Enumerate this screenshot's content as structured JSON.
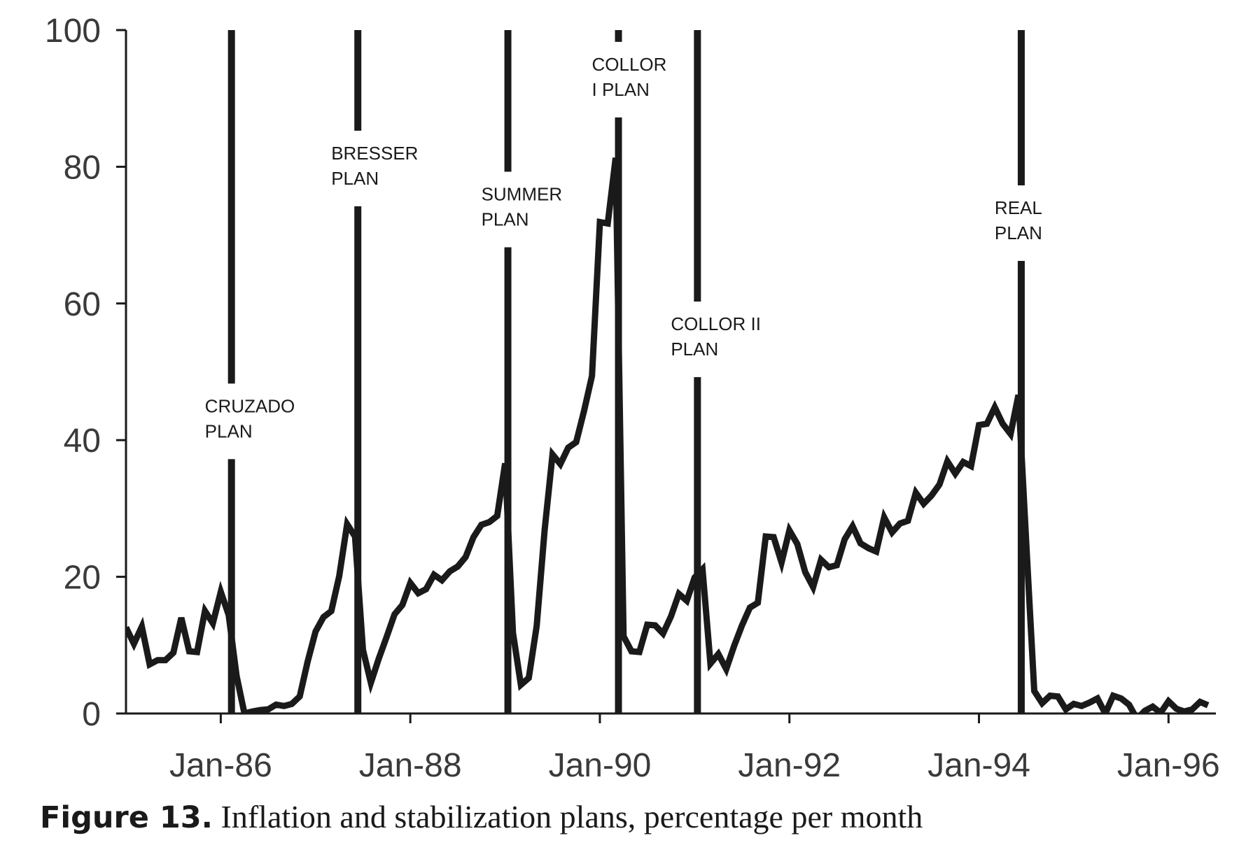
{
  "caption": {
    "label": "Figure 13.",
    "text": "Inflation and stabilization plans, percentage per month"
  },
  "chart_data": {
    "type": "line",
    "title": "",
    "xlabel": "",
    "ylabel": "",
    "ylim": [
      0,
      100
    ],
    "yticks": [
      0,
      20,
      40,
      60,
      80,
      100
    ],
    "xticks": [
      {
        "label": "Jan-86",
        "x": "1986-01"
      },
      {
        "label": "Jan-88",
        "x": "1988-01"
      },
      {
        "label": "Jan-90",
        "x": "1990-01"
      },
      {
        "label": "Jan-92",
        "x": "1992-01"
      },
      {
        "label": "Jan-94",
        "x": "1994-01"
      },
      {
        "label": "Jan-96",
        "x": "1996-01"
      }
    ],
    "xlim": [
      "1985-01",
      "1996-07"
    ],
    "grid": false,
    "line_color": "#1a1a1a",
    "series": [
      {
        "x": [
          "1985-01",
          "1985-02",
          "1985-03",
          "1985-04",
          "1985-05",
          "1985-06",
          "1985-07",
          "1985-08",
          "1985-09",
          "1985-10",
          "1985-11",
          "1985-12",
          "1986-01",
          "1986-02",
          "1986-03",
          "1986-04",
          "1986-05",
          "1986-06",
          "1986-07",
          "1986-08",
          "1986-09",
          "1986-10",
          "1986-11",
          "1986-12",
          "1987-01",
          "1987-02",
          "1987-03",
          "1987-04",
          "1987-05",
          "1987-06",
          "1987-07",
          "1987-08",
          "1987-09",
          "1987-10",
          "1987-11",
          "1987-12",
          "1988-01",
          "1988-02",
          "1988-03",
          "1988-04",
          "1988-05",
          "1988-06",
          "1988-07",
          "1988-08",
          "1988-09",
          "1988-10",
          "1988-11",
          "1988-12",
          "1989-01",
          "1989-02",
          "1989-03",
          "1989-04",
          "1989-05",
          "1989-06",
          "1989-07",
          "1989-08",
          "1989-09",
          "1989-10",
          "1989-11",
          "1989-12",
          "1990-01",
          "1990-02",
          "1990-03",
          "1990-04",
          "1990-05",
          "1990-06",
          "1990-07",
          "1990-08",
          "1990-09",
          "1990-10",
          "1990-11",
          "1990-12",
          "1991-01",
          "1991-02",
          "1991-03",
          "1991-04",
          "1991-05",
          "1991-06",
          "1991-07",
          "1991-08",
          "1991-09",
          "1991-10",
          "1991-11",
          "1991-12",
          "1992-01",
          "1992-02",
          "1992-03",
          "1992-04",
          "1992-05",
          "1992-06",
          "1992-07",
          "1992-08",
          "1992-09",
          "1992-10",
          "1992-11",
          "1992-12",
          "1993-01",
          "1993-02",
          "1993-03",
          "1993-04",
          "1993-05",
          "1993-06",
          "1993-07",
          "1993-08",
          "1993-09",
          "1993-10",
          "1993-11",
          "1993-12",
          "1994-01",
          "1994-02",
          "1994-03",
          "1994-04",
          "1994-05",
          "1994-06",
          "1994-07",
          "1994-08",
          "1994-09",
          "1994-10",
          "1994-11",
          "1994-12",
          "1995-01",
          "1995-02",
          "1995-03",
          "1995-04",
          "1995-05",
          "1995-06",
          "1995-07",
          "1995-08",
          "1995-09",
          "1995-10",
          "1995-11",
          "1995-12",
          "1996-01",
          "1996-02",
          "1996-03",
          "1996-04",
          "1996-05",
          "1996-06"
        ],
        "values": [
          12.6,
          10.2,
          12.7,
          7.2,
          7.8,
          7.8,
          8.9,
          14.0,
          9.1,
          9.0,
          15.0,
          13.2,
          17.8,
          14.4,
          5.5,
          0.0,
          0.3,
          0.5,
          0.6,
          1.3,
          1.1,
          1.4,
          2.5,
          7.6,
          12.0,
          14.1,
          15.0,
          20.1,
          27.7,
          25.9,
          9.3,
          4.5,
          8.0,
          11.2,
          14.5,
          15.9,
          19.1,
          17.6,
          18.2,
          20.3,
          19.5,
          20.8,
          21.5,
          22.9,
          25.8,
          27.6,
          28.0,
          28.9,
          36.6,
          11.8,
          4.2,
          5.2,
          12.8,
          26.8,
          37.9,
          36.5,
          38.9,
          39.7,
          44.3,
          49.4,
          71.9,
          71.7,
          81.3,
          11.3,
          9.1,
          9.0,
          13.0,
          12.9,
          11.7,
          14.2,
          17.5,
          16.5,
          19.9,
          21.1,
          7.3,
          8.7,
          6.5,
          9.9,
          12.9,
          15.5,
          16.2,
          25.9,
          25.8,
          22.1,
          26.8,
          24.8,
          20.7,
          18.5,
          22.5,
          21.4,
          21.7,
          25.5,
          27.4,
          24.9,
          24.2,
          23.7,
          28.7,
          26.5,
          27.8,
          28.2,
          32.3,
          30.7,
          31.9,
          33.5,
          36.9,
          35.1,
          36.8,
          36.2,
          42.2,
          42.4,
          44.8,
          42.4,
          40.9,
          46.6,
          24.7,
          3.3,
          1.5,
          2.6,
          2.5,
          0.6,
          1.4,
          1.1,
          1.6,
          2.2,
          0.0,
          2.6,
          2.2,
          1.3,
          -0.8,
          0.4,
          1.0,
          0.1,
          1.8,
          0.7,
          0.3,
          0.6,
          1.7,
          1.2
        ]
      }
    ],
    "plan_markers": [
      {
        "name_line1": "CRUZADO",
        "name_line2": "PLAN",
        "x": "1986-02"
      },
      {
        "name_line1": "BRESSER",
        "name_line2": "PLAN",
        "x": "1987-06"
      },
      {
        "name_line1": "SUMMER",
        "name_line2": "PLAN",
        "x": "1989-01"
      },
      {
        "name_line1": "COLLOR",
        "name_line2": "I PLAN",
        "x": "1990-03"
      },
      {
        "name_line1": "COLLOR II",
        "name_line2": "PLAN",
        "x": "1991-01"
      },
      {
        "name_line1": "REAL",
        "name_line2": "PLAN",
        "x": "1994-06"
      }
    ]
  }
}
